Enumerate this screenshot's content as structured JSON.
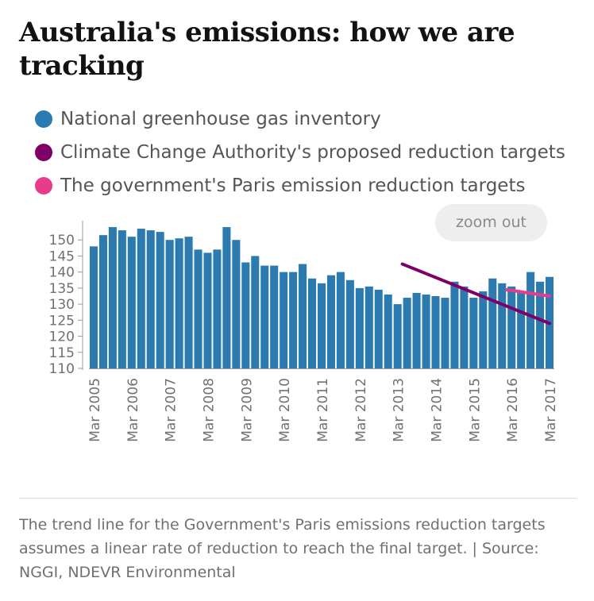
{
  "title": "Australia's emissions: how we are tracking",
  "legend": [
    {
      "label": "National greenhouse gas inventory",
      "color": "#2b7bb0"
    },
    {
      "label": "Climate Change Authority's proposed reduction targets",
      "color": "#7d0068"
    },
    {
      "label": "The government's Paris emission reduction targets",
      "color": "#e63c8b"
    }
  ],
  "zoom_button": "zoom out",
  "caption": "The trend line for the Government's Paris emissions reduction targets assumes a linear rate of reduction to reach the final target. | Source: NGGI, NDEVR Environmental",
  "chart_data": {
    "type": "bar",
    "title": "Australia's emissions: how we are tracking",
    "ylim": [
      110,
      155
    ],
    "yticks": [
      110,
      115,
      120,
      125,
      130,
      135,
      140,
      145,
      150
    ],
    "xticklabels": [
      "Mar 2005",
      "Mar 2006",
      "Mar 2007",
      "Mar 2008",
      "Mar 2009",
      "Mar 2010",
      "Mar 2011",
      "Mar 2012",
      "Mar 2013",
      "Mar 2014",
      "Mar 2015",
      "Mar 2016",
      "Mar 2017"
    ],
    "grid": false,
    "legend_position": "top",
    "series": [
      {
        "name": "National greenhouse gas inventory",
        "type": "bar",
        "color": "#2b7bb0",
        "values": [
          148,
          151.5,
          154,
          153,
          151,
          153.5,
          153,
          152.5,
          150,
          150.5,
          151,
          147,
          146,
          147,
          154,
          150,
          143,
          145,
          142,
          142,
          140,
          140,
          142.5,
          138,
          136.5,
          139,
          140,
          137.5,
          135,
          135.5,
          134.5,
          133,
          130,
          132,
          133.5,
          133,
          132.5,
          132,
          137,
          135.5,
          132,
          134,
          138,
          136.5,
          135.5,
          134,
          140,
          137,
          138.5
        ]
      },
      {
        "name": "Climate Change Authority's proposed reduction targets",
        "type": "line",
        "color": "#7d0068",
        "points": [
          [
            32.5,
            142.5
          ],
          [
            48,
            124
          ]
        ]
      },
      {
        "name": "The government's Paris emission reduction targets",
        "type": "line",
        "color": "#e63c8b",
        "points": [
          [
            43.5,
            134.5
          ],
          [
            48,
            132.5
          ]
        ]
      }
    ]
  }
}
